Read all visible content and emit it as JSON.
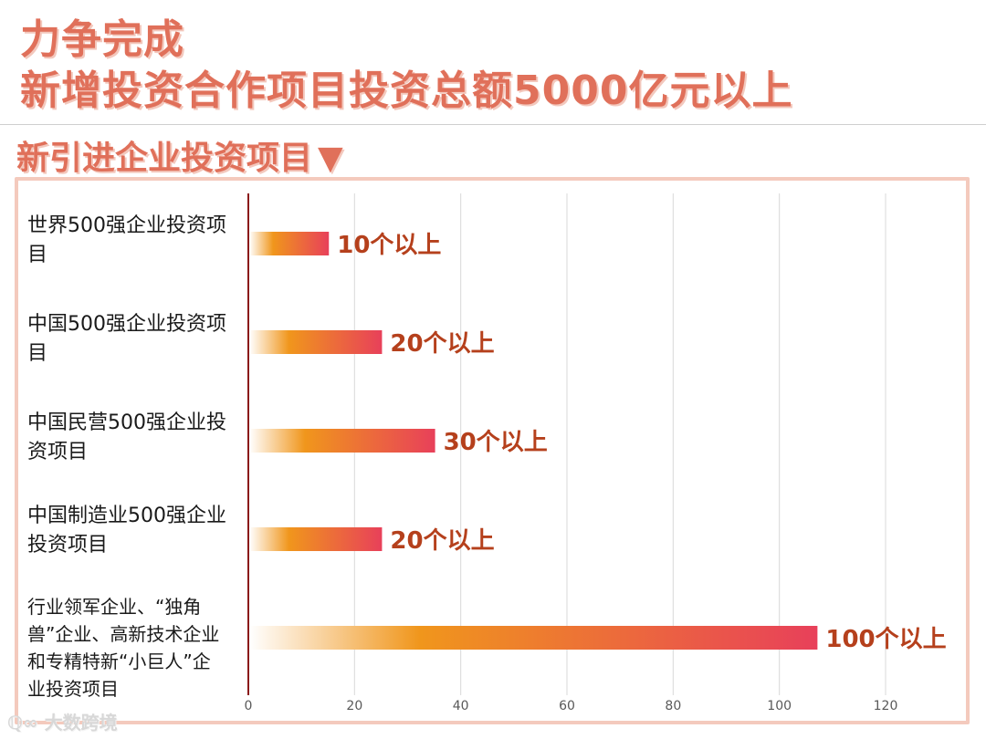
{
  "headline": {
    "line1": "力争完成",
    "line2": "新增投资合作项目投资总额5000亿元以上"
  },
  "section": {
    "title": "新引进企业投资项目",
    "arrow": "▼"
  },
  "watermark": "大数跨境",
  "colors": {
    "accent": "#e0705a",
    "value_label": "#b5401c",
    "axis_line": "#8b1a1a",
    "bar_start": "#ffffff",
    "bar_mid": "#f0961c",
    "bar_end": "#e8405a",
    "frame": "#f4cabd"
  },
  "chart_data": {
    "type": "bar",
    "orientation": "horizontal",
    "categories": [
      "世界500强企业投资项目",
      "中国500强企业投资项目",
      "中国民营500强企业投资项目",
      "中国制造业500强企业投资项目",
      "行业领军企业、“独角兽”企业、高新技术企业和专精特新“小巨人”企业投资项目"
    ],
    "values": [
      15,
      25,
      35,
      25,
      107
    ],
    "value_labels": [
      "10个以上",
      "20个以上",
      "30个以上",
      "20个以上",
      "100个以上"
    ],
    "xlim": [
      0,
      120
    ],
    "x_ticks": [
      "0",
      "20",
      "40",
      "60",
      "80",
      "100",
      "120"
    ],
    "grid": true,
    "legend": "none"
  }
}
